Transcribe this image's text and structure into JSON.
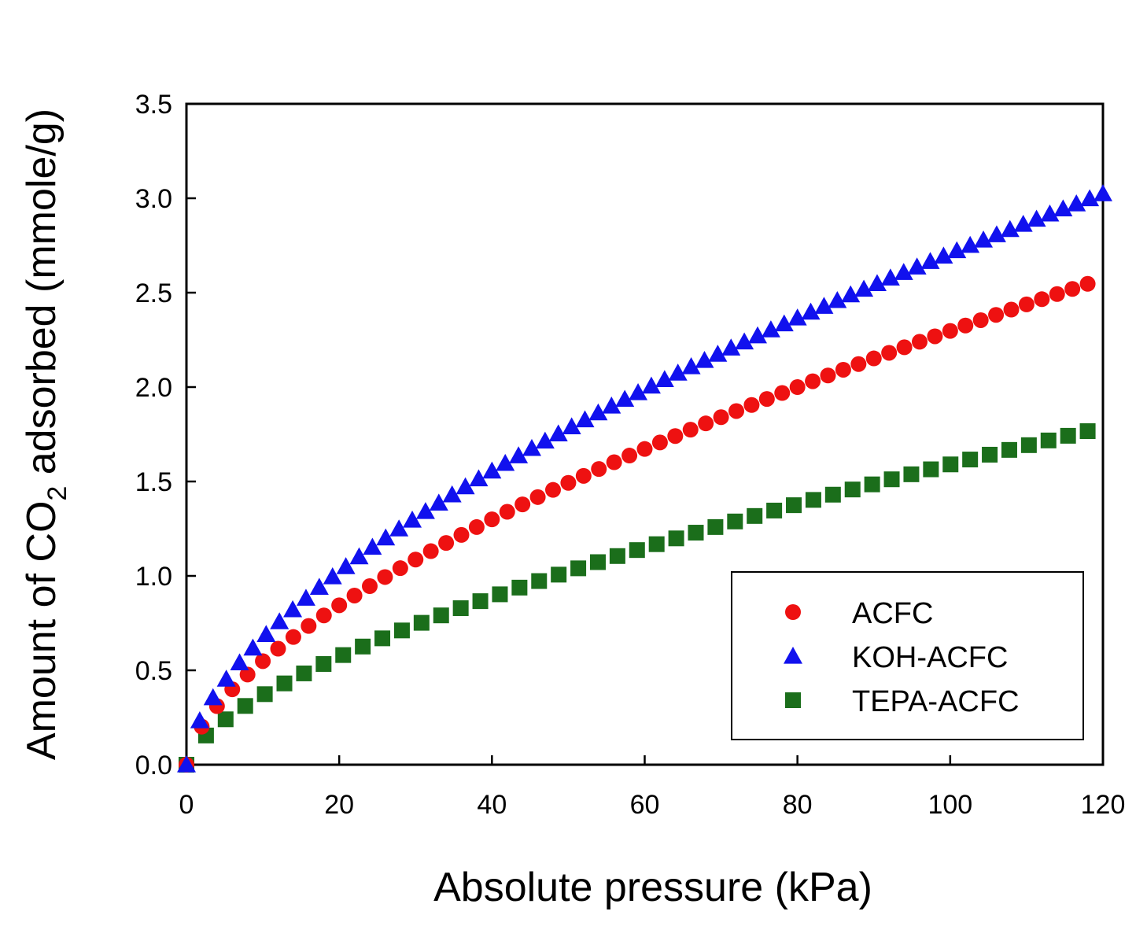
{
  "chart_data": {
    "type": "scatter",
    "title": "",
    "xlabel": "Absolute pressure (kPa)",
    "ylabel": {
      "before": "Amount of CO",
      "subscript": "2",
      "after": " adsorbed (mmole/g)"
    },
    "xlim": [
      0,
      120
    ],
    "ylim": [
      0,
      3.5
    ],
    "x_ticks": [
      "0",
      "20",
      "40",
      "60",
      "80",
      "100",
      "120"
    ],
    "y_ticks": [
      "0.0",
      "0.5",
      "1.0",
      "1.5",
      "2.0",
      "2.5",
      "3.0",
      "3.5"
    ],
    "grid": false,
    "legend_position": "bottom-right",
    "series": [
      {
        "name": "ACFC",
        "marker": "circle",
        "color": "#ee1111",
        "model": {
          "form": "power",
          "a": 0.131,
          "b": 0.622
        },
        "x_start": 0,
        "x_end": 118,
        "n_points": 60
      },
      {
        "name": "KOH-ACFC",
        "marker": "triangle",
        "color": "#1111ee",
        "model": {
          "form": "power",
          "a": 0.167,
          "b": 0.605
        },
        "x_start": 0,
        "x_end": 120,
        "n_points": 70
      },
      {
        "name": "TEPA-ACFC",
        "marker": "square",
        "color": "#1b6e1b",
        "model": {
          "form": "power",
          "a": 0.085,
          "b": 0.636
        },
        "x_start": 0,
        "x_end": 118,
        "n_points": 47
      }
    ]
  }
}
